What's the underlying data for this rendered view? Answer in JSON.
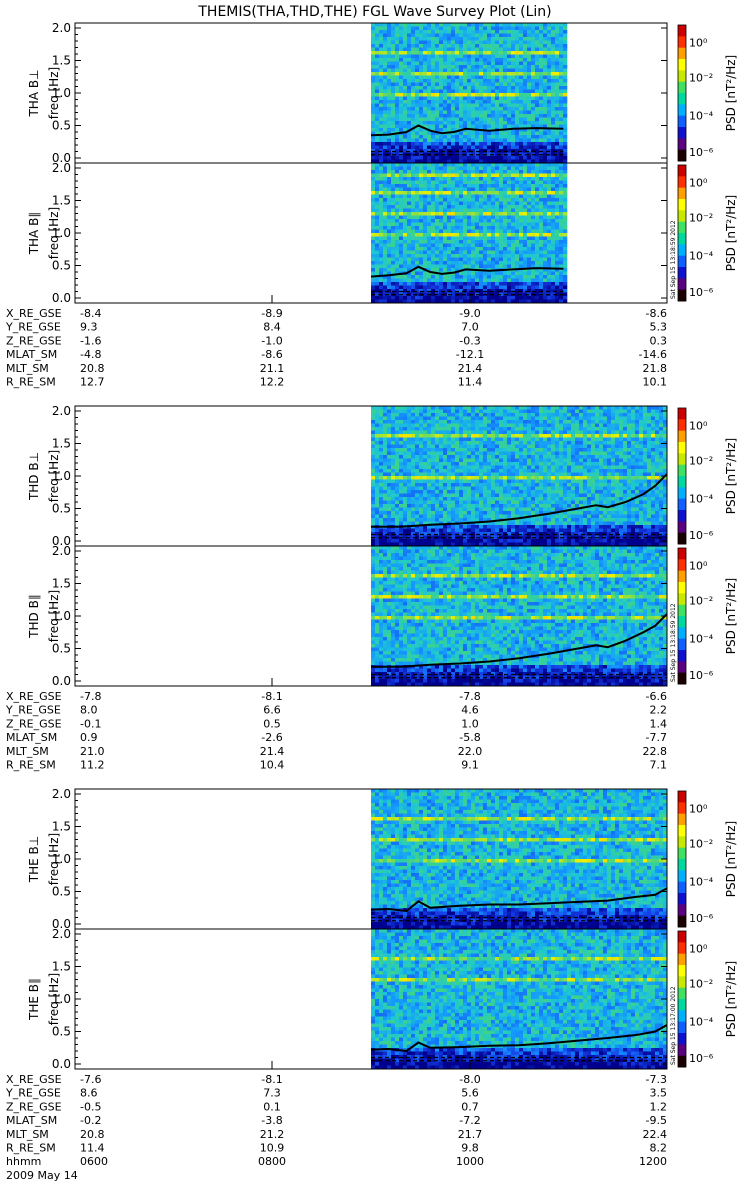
{
  "title": "THEMIS(THA,THD,THE) FGL Wave Survey Plot (Lin)",
  "colorbar_label": "PSD [nT²/Hz]",
  "colorbar_ticks": [
    "10⁰",
    "10⁻²",
    "10⁻⁴",
    "10⁻⁶"
  ],
  "colorbar_tick_exponents": [
    0,
    -2,
    -4,
    -6
  ],
  "colorbar_colors": [
    "#1a0000",
    "#5a0080",
    "#1010d0",
    "#1060ff",
    "#00b0ff",
    "#00d8a0",
    "#40e060",
    "#c8e800",
    "#ffff00",
    "#ffa000",
    "#ff3000",
    "#cc0000"
  ],
  "probes": [
    {
      "panels": [
        {
          "label": "THA B⊥",
          "ylabel": "freq [Hz]",
          "data_start": 0.5,
          "data_end": 0.825,
          "trace_x": [
            0.5,
            0.53,
            0.56,
            0.58,
            0.6,
            0.62,
            0.64,
            0.66,
            0.7,
            0.74,
            0.78,
            0.825
          ],
          "trace_y": [
            0.35,
            0.36,
            0.4,
            0.5,
            0.42,
            0.38,
            0.4,
            0.45,
            0.42,
            0.45,
            0.46,
            0.45
          ],
          "bright_lines": [
            1.0,
            1.33,
            1.67
          ]
        },
        {
          "label": "THA B∥",
          "ylabel": "freq [Hz]",
          "data_start": 0.5,
          "data_end": 0.825,
          "trace_x": [
            0.5,
            0.53,
            0.56,
            0.58,
            0.6,
            0.62,
            0.64,
            0.66,
            0.7,
            0.74,
            0.78,
            0.825
          ],
          "trace_y": [
            0.33,
            0.35,
            0.38,
            0.48,
            0.4,
            0.37,
            0.39,
            0.44,
            0.42,
            0.44,
            0.46,
            0.45
          ],
          "bright_lines": [
            1.0,
            1.33,
            1.67,
            1.9
          ],
          "stamp": "Sat Sep 15 13:18:59 2012"
        }
      ],
      "ephemeris": [
        {
          "name": "X_RE_GSE",
          "values": [
            "-8.4",
            "-8.9",
            "-9.0",
            "-8.6"
          ]
        },
        {
          "name": "Y_RE_GSE",
          "values": [
            "9.3",
            "8.4",
            "7.0",
            "5.3"
          ]
        },
        {
          "name": "Z_RE_GSE",
          "values": [
            "-1.6",
            "-1.0",
            "-0.3",
            "0.3"
          ]
        },
        {
          "name": "MLAT_SM",
          "values": [
            "-4.8",
            "-8.6",
            "-12.1",
            "-14.6"
          ]
        },
        {
          "name": "MLT_SM",
          "values": [
            "20.8",
            "21.1",
            "21.4",
            "21.8"
          ]
        },
        {
          "name": "R_RE_SM",
          "values": [
            "12.7",
            "12.2",
            "11.4",
            "10.1"
          ]
        }
      ]
    },
    {
      "panels": [
        {
          "label": "THD B⊥",
          "ylabel": "freq [Hz]",
          "data_start": 0.5,
          "data_end": 1.0,
          "trace_x": [
            0.5,
            0.55,
            0.6,
            0.65,
            0.7,
            0.75,
            0.8,
            0.85,
            0.88,
            0.9,
            0.93,
            0.96,
            0.98,
            1.0
          ],
          "trace_y": [
            0.22,
            0.22,
            0.25,
            0.27,
            0.3,
            0.35,
            0.42,
            0.5,
            0.55,
            0.52,
            0.6,
            0.72,
            0.85,
            1.03
          ],
          "bright_lines": [
            1.0,
            1.67
          ]
        },
        {
          "label": "THD B∥",
          "ylabel": "freq [Hz]",
          "data_start": 0.5,
          "data_end": 1.0,
          "trace_x": [
            0.5,
            0.55,
            0.6,
            0.65,
            0.7,
            0.75,
            0.8,
            0.85,
            0.88,
            0.9,
            0.93,
            0.96,
            0.98,
            1.0
          ],
          "trace_y": [
            0.22,
            0.22,
            0.25,
            0.27,
            0.3,
            0.35,
            0.42,
            0.5,
            0.55,
            0.52,
            0.62,
            0.75,
            0.85,
            1.03
          ],
          "bright_lines": [
            1.67,
            1.33,
            1.0
          ],
          "stamp": "Sat Sep 15 13:18:59 2012"
        }
      ],
      "ephemeris": [
        {
          "name": "X_RE_GSE",
          "values": [
            "-7.8",
            "-8.1",
            "-7.8",
            "-6.6"
          ]
        },
        {
          "name": "Y_RE_GSE",
          "values": [
            "8.0",
            "6.6",
            "4.6",
            "2.2"
          ]
        },
        {
          "name": "Z_RE_GSE",
          "values": [
            "-0.1",
            "0.5",
            "1.0",
            "1.4"
          ]
        },
        {
          "name": "MLAT_SM",
          "values": [
            "0.9",
            "-2.6",
            "-5.8",
            "-7.7"
          ]
        },
        {
          "name": "MLT_SM",
          "values": [
            "21.0",
            "21.4",
            "22.0",
            "22.8"
          ]
        },
        {
          "name": "R_RE_SM",
          "values": [
            "11.2",
            "10.4",
            "9.1",
            "7.1"
          ]
        }
      ]
    },
    {
      "panels": [
        {
          "label": "THE B⊥",
          "ylabel": "freq [Hz]",
          "data_start": 0.5,
          "data_end": 1.0,
          "trace_x": [
            0.5,
            0.53,
            0.56,
            0.58,
            0.6,
            0.65,
            0.7,
            0.75,
            0.8,
            0.85,
            0.9,
            0.95,
            0.98,
            1.0
          ],
          "trace_y": [
            0.22,
            0.23,
            0.2,
            0.35,
            0.25,
            0.28,
            0.3,
            0.3,
            0.32,
            0.34,
            0.36,
            0.42,
            0.45,
            0.55
          ],
          "bright_lines": [
            1.0,
            1.33,
            1.67
          ]
        },
        {
          "label": "THE B∥",
          "ylabel": "freq [Hz]",
          "data_start": 0.5,
          "data_end": 1.0,
          "trace_x": [
            0.5,
            0.53,
            0.56,
            0.58,
            0.6,
            0.65,
            0.7,
            0.75,
            0.8,
            0.85,
            0.9,
            0.95,
            0.98,
            1.0
          ],
          "trace_y": [
            0.22,
            0.23,
            0.2,
            0.33,
            0.25,
            0.26,
            0.28,
            0.29,
            0.32,
            0.36,
            0.4,
            0.45,
            0.5,
            0.6
          ],
          "bright_lines": [
            1.67,
            1.33
          ],
          "stamp": "Sat Sep 15 13:17:00 2012"
        }
      ],
      "ephemeris": [
        {
          "name": "X_RE_GSE",
          "values": [
            "-7.6",
            "-8.1",
            "-8.0",
            "-7.3"
          ]
        },
        {
          "name": "Y_RE_GSE",
          "values": [
            "8.6",
            "7.3",
            "5.6",
            "3.5"
          ]
        },
        {
          "name": "Z_RE_GSE",
          "values": [
            "-0.5",
            "0.1",
            "0.7",
            "1.2"
          ]
        },
        {
          "name": "MLAT_SM",
          "values": [
            "-0.2",
            "-3.8",
            "-7.2",
            "-9.5"
          ]
        },
        {
          "name": "MLT_SM",
          "values": [
            "20.8",
            "21.2",
            "21.7",
            "22.4"
          ]
        },
        {
          "name": "R_RE_SM",
          "values": [
            "11.4",
            "10.9",
            "9.8",
            "8.2"
          ]
        }
      ],
      "time_row": {
        "name": "hhmm",
        "values": [
          "0600",
          "0800",
          "1000",
          "1200"
        ]
      },
      "date": "2009 May 14"
    }
  ],
  "chart_data": {
    "type": "heatmap",
    "title": "THEMIS(THA,THD,THE) FGL Wave Survey Plot (Lin)",
    "xlabel": "hhmm",
    "x_ticks": [
      "0600",
      "0800",
      "1000",
      "1200"
    ],
    "xlim": [
      "0600",
      "1200"
    ],
    "date": "2009 May 14",
    "y_ticks": [
      0.0,
      0.5,
      1.0,
      1.5,
      2.0
    ],
    "ylim": [
      0,
      2.0
    ],
    "colorbar": {
      "label": "PSD [nT²/Hz]",
      "scale": "log",
      "ticks": [
        "10⁰",
        "10⁻²",
        "10⁻⁴",
        "10⁻⁶"
      ]
    },
    "series": [
      {
        "name": "THA B⊥"
      },
      {
        "name": "THA B∥"
      },
      {
        "name": "THD B⊥"
      },
      {
        "name": "THD B∥"
      },
      {
        "name": "THE B⊥"
      },
      {
        "name": "THE B∥"
      }
    ]
  }
}
